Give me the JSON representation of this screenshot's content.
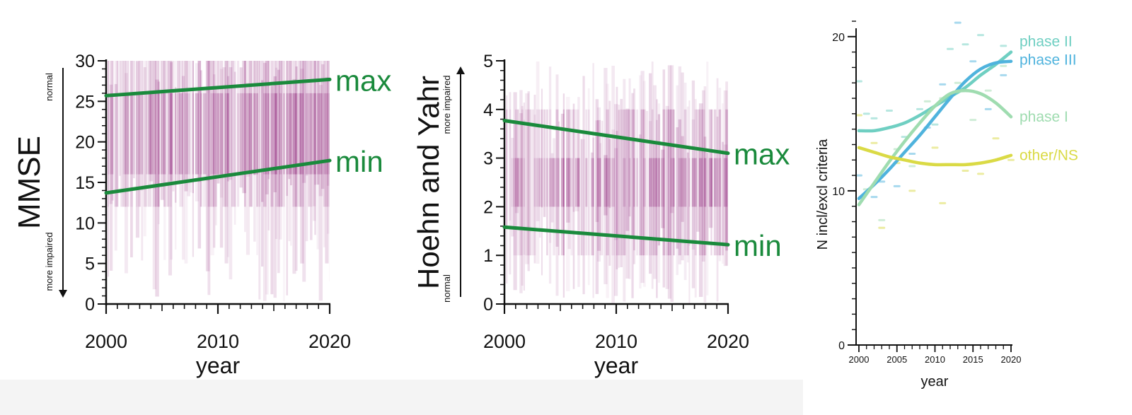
{
  "colors": {
    "band": "#8a1a74",
    "fit_line": "#1a8a3c",
    "axis": "#111111",
    "phase_I": "#9fdcb0",
    "phase_II": "#6fcfc2",
    "phase_III": "#4fb3dd",
    "other_NS": "#dada45"
  },
  "chart_data": [
    {
      "type": "heatmap",
      "title": "",
      "ylabel": "MMSE",
      "xlabel": "year",
      "xlim": [
        2000,
        2020
      ],
      "ylim": [
        0,
        30
      ],
      "x_ticks": [
        "2000",
        "2010",
        "2020"
      ],
      "y_ticks": [
        "0",
        "5",
        "10",
        "15",
        "20",
        "25",
        "30"
      ],
      "direction_top": "normal",
      "direction_bottom": "more impaired",
      "core_band": {
        "low": 12,
        "high": 30
      },
      "dense_band": {
        "low": 16,
        "high": 26
      },
      "series": [
        {
          "name": "max",
          "x": [
            2000,
            2020
          ],
          "y": [
            25.7,
            27.7
          ]
        },
        {
          "name": "min",
          "x": [
            2000,
            2020
          ],
          "y": [
            13.7,
            17.7
          ]
        }
      ]
    },
    {
      "type": "heatmap",
      "title": "",
      "ylabel": "Hoehn and Yahr",
      "xlabel": "year",
      "xlim": [
        2000,
        2020
      ],
      "ylim": [
        0,
        5
      ],
      "x_ticks": [
        "2000",
        "2010",
        "2020"
      ],
      "y_ticks": [
        "0",
        "1",
        "2",
        "3",
        "4",
        "5"
      ],
      "direction_top": "more impaired",
      "direction_bottom": "normal",
      "core_band": {
        "low": 1,
        "high": 4
      },
      "dense_band": {
        "low": 2,
        "high": 3
      },
      "series": [
        {
          "name": "max",
          "x": [
            2000,
            2020
          ],
          "y": [
            3.77,
            3.1
          ]
        },
        {
          "name": "min",
          "x": [
            2000,
            2020
          ],
          "y": [
            1.58,
            1.22
          ]
        }
      ]
    },
    {
      "type": "line",
      "title": "",
      "ylabel": "N incl/excl criteria",
      "xlabel": "year",
      "xlim": [
        2000,
        2020
      ],
      "ylim": [
        0,
        21
      ],
      "x_ticks": [
        "2000",
        "2005",
        "2010",
        "2015",
        "2020"
      ],
      "y_ticks": [
        "0",
        "10",
        "20"
      ],
      "x": [
        2000,
        2002,
        2004,
        2006,
        2008,
        2010,
        2012,
        2014,
        2016,
        2018,
        2020
      ],
      "series": [
        {
          "name": "phase II",
          "color": "#6fcfc2",
          "values": [
            13.9,
            13.9,
            14.1,
            14.4,
            14.9,
            15.5,
            16.1,
            16.7,
            17.5,
            18.2,
            19.0
          ]
        },
        {
          "name": "phase III",
          "color": "#4fb3dd",
          "values": [
            9.5,
            10.4,
            11.4,
            12.5,
            13.6,
            14.8,
            16.0,
            17.1,
            17.9,
            18.3,
            18.4
          ]
        },
        {
          "name": "phase I",
          "color": "#9fdcb0",
          "values": [
            9.1,
            10.5,
            11.9,
            13.2,
            14.4,
            15.5,
            16.3,
            16.5,
            16.3,
            15.7,
            14.8
          ]
        },
        {
          "name": "other/NS",
          "color": "#dada45",
          "values": [
            12.8,
            12.5,
            12.2,
            12.0,
            11.8,
            11.7,
            11.7,
            11.7,
            11.8,
            12.0,
            12.3
          ]
        }
      ],
      "markers": [
        {
          "name": "phase II",
          "color": "#6fcfc2",
          "points": [
            [
              2000,
              17.1
            ],
            [
              2001,
              15.0
            ],
            [
              2002,
              14.7
            ],
            [
              2004,
              15.2
            ],
            [
              2006,
              13.5
            ],
            [
              2008,
              15.3
            ],
            [
              2010,
              14.3
            ],
            [
              2012,
              19.2
            ],
            [
              2014,
              19.5
            ],
            [
              2016,
              20.1
            ],
            [
              2018,
              18.3
            ],
            [
              2019,
              19.4
            ]
          ]
        },
        {
          "name": "phase III",
          "color": "#4fb3dd",
          "points": [
            [
              2000,
              11.0
            ],
            [
              2002,
              9.6
            ],
            [
              2003,
              10.6
            ],
            [
              2005,
              10.3
            ],
            [
              2007,
              12.4
            ],
            [
              2009,
              14.1
            ],
            [
              2011,
              16.9
            ],
            [
              2013,
              20.9
            ],
            [
              2015,
              18.4
            ],
            [
              2017,
              15.3
            ],
            [
              2019,
              17.5
            ]
          ]
        },
        {
          "name": "phase I",
          "color": "#9fdcb0",
          "points": [
            [
              2001,
              10.1
            ],
            [
              2003,
              8.1
            ],
            [
              2005,
              12.7
            ],
            [
              2007,
              11.6
            ],
            [
              2009,
              15.8
            ],
            [
              2011,
              16.0
            ],
            [
              2013,
              17.0
            ],
            [
              2015,
              14.6
            ],
            [
              2017,
              16.5
            ],
            [
              2019,
              18.1
            ]
          ]
        },
        {
          "name": "other/NS",
          "color": "#dada45",
          "points": [
            [
              2000,
              14.9
            ],
            [
              2002,
              13.1
            ],
            [
              2003,
              7.6
            ],
            [
              2005,
              11.8
            ],
            [
              2007,
              10.0
            ],
            [
              2010,
              12.8
            ],
            [
              2011,
              9.2
            ],
            [
              2014,
              11.3
            ],
            [
              2016,
              11.1
            ],
            [
              2018,
              13.4
            ],
            [
              2020,
              12.0
            ]
          ]
        }
      ],
      "legend_labels": [
        {
          "text": "phase II",
          "color": "#6fcfc2"
        },
        {
          "text": "phase III",
          "color": "#4fb3dd"
        },
        {
          "text": "phase I",
          "color": "#9fdcb0"
        },
        {
          "text": "other/NS",
          "color": "#dada45"
        }
      ]
    }
  ]
}
